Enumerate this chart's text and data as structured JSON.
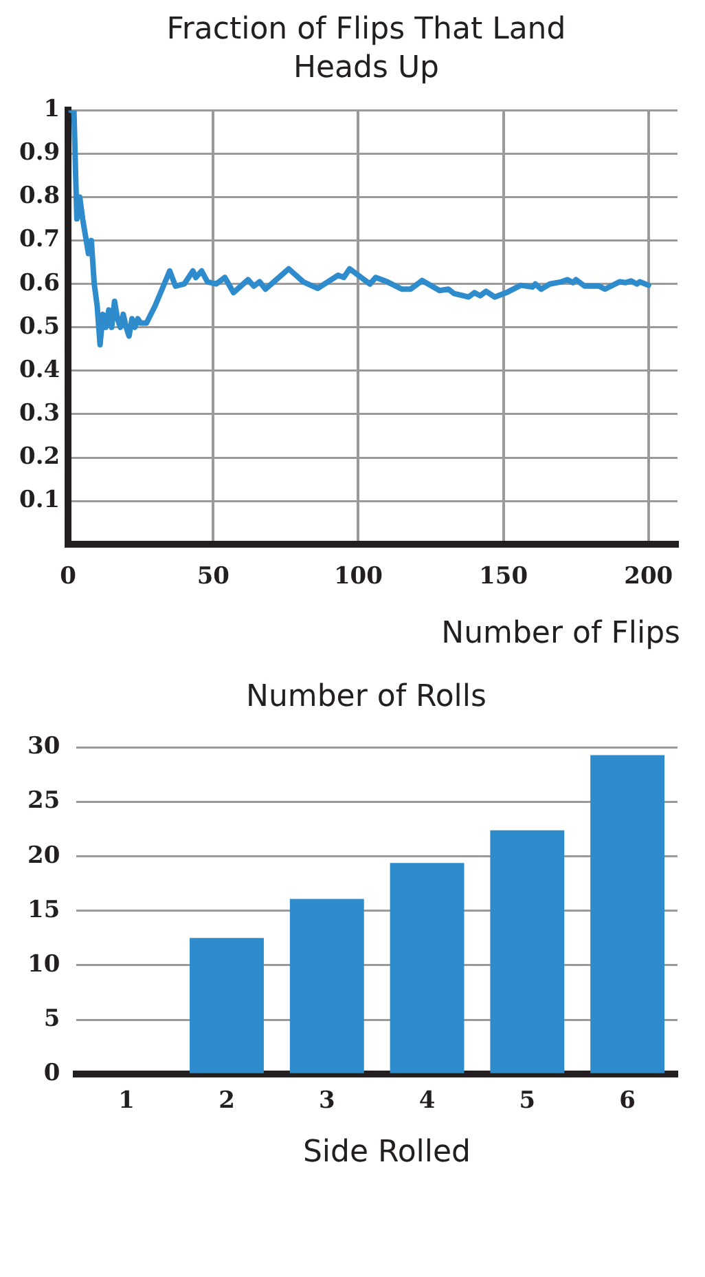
{
  "chart_data": [
    {
      "type": "line",
      "title": "Fraction of Flips That Land Heads Up",
      "xlabel": "Number of Flips",
      "xlim": [
        0,
        210
      ],
      "ylim": [
        0,
        1
      ],
      "xticks": [
        0,
        50,
        100,
        150,
        200
      ],
      "yticks": [
        0.1,
        0.2,
        0.3,
        0.4,
        0.5,
        0.6,
        0.7,
        0.8,
        0.9,
        1
      ],
      "grid": true,
      "legend": false,
      "marker": "none",
      "line_style": "solid",
      "series": [
        {
          "color": "#2e8bcc",
          "x": [
            1,
            2,
            3,
            4,
            5,
            6,
            7,
            8,
            9,
            10,
            11,
            12,
            13,
            14,
            15,
            16,
            17,
            18,
            19,
            20,
            21,
            22,
            23,
            24,
            25,
            27,
            30,
            35,
            37,
            40,
            43,
            44,
            46,
            48,
            51,
            54,
            57,
            62,
            64,
            66,
            68,
            76,
            81,
            86,
            93,
            95,
            97,
            104,
            106,
            110,
            115,
            118,
            122,
            128,
            131,
            133,
            138,
            140,
            142,
            144,
            147,
            151,
            156,
            160,
            161,
            163,
            166,
            170,
            172,
            174,
            175,
            178,
            183,
            185,
            190,
            192,
            194,
            196,
            197,
            200
          ],
          "values": [
            1,
            1,
            0.75,
            0.8,
            0.75,
            0.71,
            0.67,
            0.7,
            0.6,
            0.55,
            0.46,
            0.53,
            0.5,
            0.54,
            0.5,
            0.56,
            0.52,
            0.5,
            0.53,
            0.5,
            0.48,
            0.52,
            0.5,
            0.52,
            0.51,
            0.51,
            0.55,
            0.63,
            0.595,
            0.6,
            0.63,
            0.615,
            0.63,
            0.605,
            0.6,
            0.615,
            0.58,
            0.61,
            0.595,
            0.605,
            0.588,
            0.635,
            0.605,
            0.59,
            0.62,
            0.615,
            0.635,
            0.6,
            0.615,
            0.605,
            0.588,
            0.588,
            0.608,
            0.585,
            0.588,
            0.578,
            0.57,
            0.58,
            0.573,
            0.583,
            0.57,
            0.58,
            0.597,
            0.593,
            0.6,
            0.588,
            0.6,
            0.605,
            0.61,
            0.603,
            0.61,
            0.595,
            0.595,
            0.588,
            0.605,
            0.603,
            0.607,
            0.6,
            0.605,
            0.597
          ]
        }
      ]
    },
    {
      "type": "bar",
      "title": "Number of Rolls",
      "xlabel": "Side Rolled",
      "categories": [
        "1",
        "2",
        "3",
        "4",
        "5",
        "6"
      ],
      "values": [
        0,
        12.5,
        16.1,
        19.4,
        22.4,
        29.3
      ],
      "color": "#2e8bcc",
      "ylim": [
        0,
        30
      ],
      "yticks": [
        0,
        5,
        10,
        15,
        20,
        25,
        30
      ],
      "grid": "y",
      "legend": false
    }
  ]
}
